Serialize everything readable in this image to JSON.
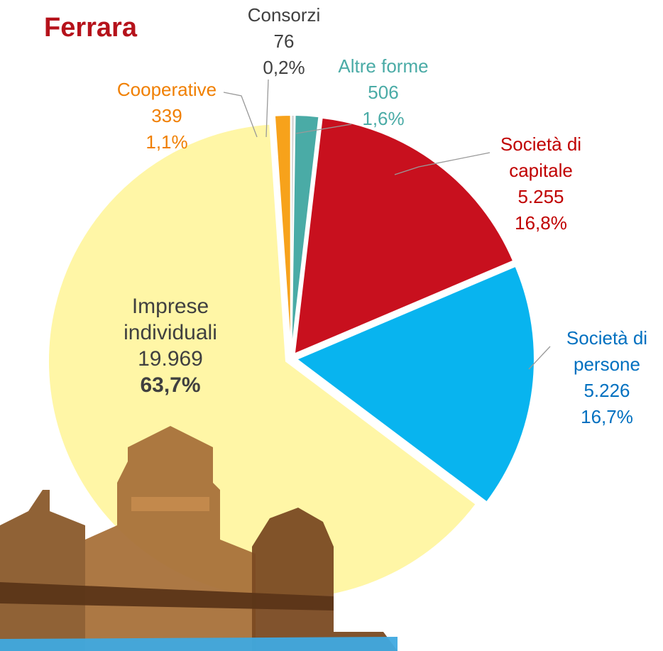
{
  "chart_data": {
    "type": "pie",
    "title": "Ferrara",
    "categories": [
      "Altre forme",
      "Società di capitale",
      "Società di persone",
      "Imprese individuali",
      "Cooperative",
      "Consorzi"
    ],
    "values": [
      506,
      5255,
      5226,
      19969,
      339,
      76
    ],
    "value_labels": [
      "506",
      "5.255",
      "5.226",
      "19.969",
      "339",
      "76"
    ],
    "percentages": [
      1.6,
      16.8,
      16.7,
      63.7,
      1.1,
      0.2
    ],
    "percent_labels": [
      "1,6%",
      "16,8%",
      "16,7%",
      "63,7%",
      "1,1%",
      "0,2%"
    ],
    "colors": [
      "#4aaba6",
      "#c8101e",
      "#08b4ef",
      "#fff6a6",
      "#f7a21b",
      "#d9d9d9"
    ],
    "label_colors": [
      "#4aaba6",
      "#c00000",
      "#0070c0",
      "#404040",
      "#f07f00",
      "#404040"
    ]
  }
}
